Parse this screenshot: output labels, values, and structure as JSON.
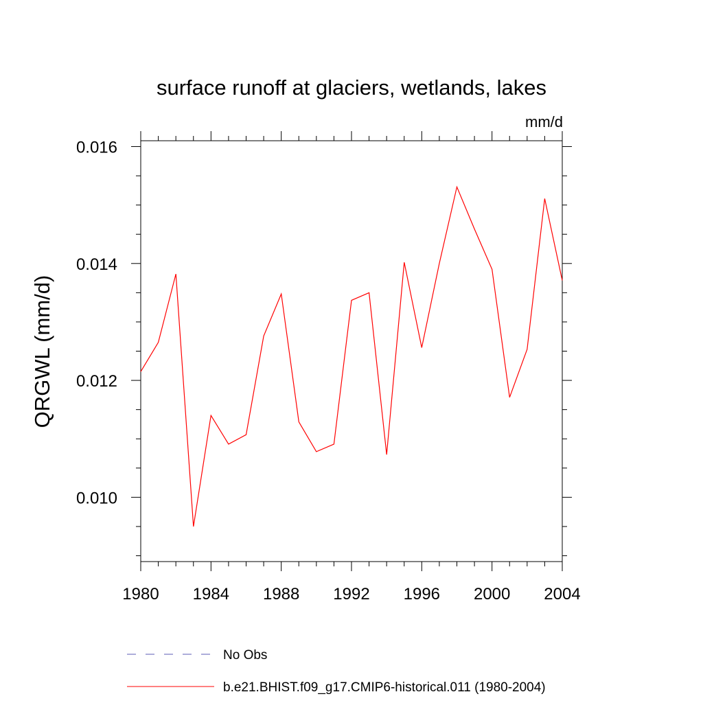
{
  "chart_data": {
    "type": "line",
    "title": "surface runoff at glaciers, wetlands, lakes",
    "units_label": "mm/d",
    "ylabel": "QRGWL  (mm/d)",
    "xlabel": "",
    "xlim": [
      1980,
      2004
    ],
    "ylim": [
      0.0089,
      0.0161
    ],
    "x_ticks": [
      1980,
      1984,
      1988,
      1992,
      1996,
      2000,
      2004
    ],
    "x_tick_labels": [
      "1980",
      "1984",
      "1988",
      "1992",
      "1996",
      "2000",
      "2004"
    ],
    "y_ticks": [
      0.01,
      0.012,
      0.014,
      0.016
    ],
    "y_tick_labels": [
      "0.010",
      "0.012",
      "0.014",
      "0.016"
    ],
    "y_minor_step": 0.0005,
    "x_minor_step": 1,
    "grid": false,
    "legend_position": "bottom",
    "series": [
      {
        "name": "b.e21.BHIST.f09_g17.CMIP6-historical.011 (1980-2004)",
        "color": "#ff0000",
        "style": "solid",
        "x": [
          1980,
          1981,
          1982,
          1983,
          1984,
          1985,
          1986,
          1987,
          1988,
          1989,
          1990,
          1991,
          1992,
          1993,
          1994,
          1995,
          1996,
          1997,
          1998,
          1999,
          2000,
          2001,
          2002,
          2003,
          2004
        ],
        "values": [
          0.01215,
          0.01265,
          0.01382,
          0.0095,
          0.0114,
          0.01091,
          0.01107,
          0.01276,
          0.01348,
          0.01129,
          0.01078,
          0.01091,
          0.01337,
          0.0135,
          0.01073,
          0.01402,
          0.01256,
          0.014,
          0.01531,
          0.01459,
          0.0139,
          0.01171,
          0.01253,
          0.01511,
          0.01371
        ]
      },
      {
        "name": "No Obs",
        "color": "#5b5bb5",
        "style": "dashed",
        "x": [],
        "values": []
      }
    ]
  }
}
